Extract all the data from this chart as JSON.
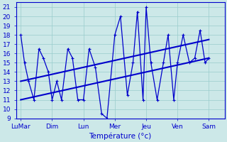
{
  "x_labels": [
    "LuMar",
    "Dim",
    "Lun",
    "Mer",
    "Jeu",
    "Ven",
    "Sam"
  ],
  "x_tick_positions": [
    0,
    1,
    2,
    3,
    4,
    5,
    6
  ],
  "zigzag_x": [
    0.0,
    0.12,
    0.25,
    0.42,
    0.58,
    0.72,
    0.88,
    1.0,
    1.15,
    1.3,
    1.5,
    1.65,
    1.82,
    2.0,
    2.18,
    2.38,
    2.58,
    2.75,
    3.0,
    3.18,
    3.4,
    3.58,
    3.72,
    3.9,
    4.0,
    4.15,
    4.35,
    4.55,
    4.7,
    4.88,
    5.0,
    5.18,
    5.38,
    5.55,
    5.72,
    5.88,
    6.0
  ],
  "zigzag_y": [
    18,
    15,
    13,
    11,
    16.5,
    15.5,
    14,
    11,
    13,
    11,
    16.5,
    15.5,
    11,
    11,
    16.5,
    14.5,
    9.5,
    9,
    18,
    20,
    11.5,
    15,
    20.5,
    11,
    21,
    15,
    11,
    15,
    18,
    11,
    15,
    18,
    15,
    15.5,
    18.5,
    15,
    15.5
  ],
  "trend1_x": [
    0,
    6
  ],
  "trend1_y": [
    13.0,
    17.5
  ],
  "trend2_x": [
    0,
    6
  ],
  "trend2_y": [
    11.0,
    15.5
  ],
  "line_color": "#0000cc",
  "bg_color": "#cce8e8",
  "grid_color": "#99cccc",
  "xlabel": "Température (°c)",
  "ylim": [
    9,
    21.5
  ],
  "yticks": [
    9,
    10,
    11,
    12,
    13,
    14,
    15,
    16,
    17,
    18,
    19,
    20,
    21
  ],
  "tick_fontsize": 6.5,
  "label_fontsize": 7.5
}
